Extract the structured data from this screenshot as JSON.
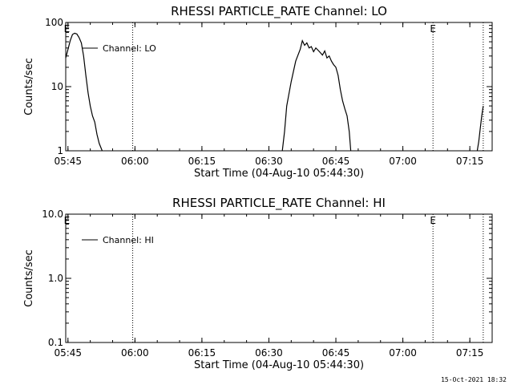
{
  "footer": {
    "timestamp": "15-Oct-2021 18:32"
  },
  "chart_data": [
    {
      "type": "line",
      "title": "RHESSI PARTICLE_RATE Channel: LO",
      "xlabel": "Start Time (04-Aug-10 05:44:30)",
      "ylabel": "Counts/sec",
      "y_scale": "log",
      "xlim": [
        "05:44:30",
        "07:20:00"
      ],
      "ylim": [
        1,
        100
      ],
      "x_ticks": [
        "05:45",
        "06:00",
        "06:15",
        "06:30",
        "06:45",
        "07:00",
        "07:15"
      ],
      "y_ticks": [
        "1",
        "10",
        "100"
      ],
      "event_markers": [
        {
          "time": "05:44:45",
          "label": "E",
          "dotted_line": false
        },
        {
          "time": "05:59:30",
          "label": "",
          "dotted_line": true
        },
        {
          "time": "07:06:45",
          "label": "E",
          "dotted_line": true
        },
        {
          "time": "07:18:00",
          "label": "",
          "dotted_line": true
        }
      ],
      "legend": {
        "position": "top-left",
        "entries": [
          "Channel: LO"
        ]
      },
      "series": [
        {
          "name": "Channel: LO",
          "segments": [
            {
              "x": [
                "05:44:30",
                "05:45:00",
                "05:45:30",
                "05:46:00",
                "05:46:30",
                "05:47:00",
                "05:47:30",
                "05:48:00",
                "05:48:30",
                "05:49:00",
                "05:49:30",
                "05:50:00",
                "05:50:30",
                "05:51:00",
                "05:51:30",
                "05:52:00",
                "05:52:40"
              ],
              "y": [
                28,
                38,
                52,
                65,
                68,
                66,
                58,
                48,
                30,
                15,
                8,
                5,
                3.5,
                2.8,
                1.8,
                1.3,
                1.0
              ]
            },
            {
              "x": [
                "06:33:00",
                "06:33:30",
                "06:34:00",
                "06:35:00",
                "06:36:00",
                "06:37:00",
                "06:37:30",
                "06:38:00",
                "06:38:30",
                "06:39:00",
                "06:39:30",
                "06:40:00",
                "06:40:30",
                "06:41:00",
                "06:41:30",
                "06:42:00",
                "06:42:30",
                "06:43:00",
                "06:43:30",
                "06:44:00",
                "06:44:30",
                "06:45:00",
                "06:45:30",
                "06:46:00",
                "06:46:30",
                "06:47:00",
                "06:47:30",
                "06:48:00",
                "06:48:20"
              ],
              "y": [
                1.0,
                2.0,
                5,
                12,
                25,
                38,
                52,
                44,
                48,
                40,
                42,
                35,
                40,
                37,
                34,
                31,
                36,
                28,
                30,
                25,
                22,
                20,
                15,
                9,
                6,
                4.5,
                3.5,
                2,
                1.0
              ]
            },
            {
              "x": [
                "07:16:40",
                "07:17:00",
                "07:17:20",
                "07:17:40",
                "07:18:00"
              ],
              "y": [
                1.0,
                1.4,
                2.2,
                3.5,
                5.0
              ]
            }
          ]
        }
      ]
    },
    {
      "type": "line",
      "title": "RHESSI PARTICLE_RATE Channel: HI",
      "xlabel": "Start Time (04-Aug-10 05:44:30)",
      "ylabel": "Counts/sec",
      "y_scale": "log",
      "xlim": [
        "05:44:30",
        "07:20:00"
      ],
      "ylim": [
        0.1,
        10
      ],
      "x_ticks": [
        "05:45",
        "06:00",
        "06:15",
        "06:30",
        "06:45",
        "07:00",
        "07:15"
      ],
      "y_ticks": [
        "0.1",
        "1.0",
        "10.0"
      ],
      "event_markers": [
        {
          "time": "05:44:45",
          "label": "E",
          "dotted_line": false
        },
        {
          "time": "05:59:30",
          "label": "",
          "dotted_line": true
        },
        {
          "time": "07:06:45",
          "label": "E",
          "dotted_line": true
        },
        {
          "time": "07:18:00",
          "label": "",
          "dotted_line": true
        }
      ],
      "legend": {
        "position": "top-left",
        "entries": [
          "Channel: HI"
        ]
      },
      "series": [
        {
          "name": "Channel: HI",
          "segments": []
        }
      ]
    }
  ]
}
